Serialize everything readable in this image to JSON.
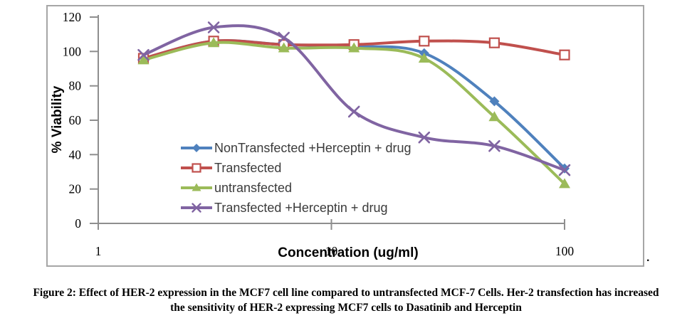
{
  "figure": {
    "caption_line1": "Figure 2:  Effect of HER-2 expression in the MCF7 cell line compared to untransfected MCF-7 Cells. Her-2 transfection has increased",
    "caption_line2": "the sensitivity of HER-2 expressing MCF7 cells to Dasatinib and Herceptin",
    "trailing_period": "."
  },
  "chart_data": {
    "type": "line",
    "smooth": true,
    "grid": false,
    "x_axis": {
      "label": "Concentration (ug/ml)",
      "scale": "log10",
      "ticks": [
        1,
        10,
        100
      ],
      "range": [
        1,
        100
      ]
    },
    "y_axis": {
      "label": "% Viability",
      "ticks": [
        120,
        100,
        80,
        60,
        40,
        20,
        0
      ],
      "range": [
        0,
        120
      ]
    },
    "x": [
      1.5625,
      3.125,
      6.25,
      12.5,
      25,
      50,
      100
    ],
    "series": [
      {
        "name": "NonTransfected +Herceptin + drug",
        "color": "#4F81BD",
        "marker": "diamond",
        "values": [
          96,
          106,
          104,
          103,
          99,
          71,
          32
        ]
      },
      {
        "name": "Transfected",
        "color": "#C0504D",
        "marker": "open-square",
        "values": [
          96,
          106,
          104,
          104,
          106,
          105,
          98
        ]
      },
      {
        "name": "untransfected",
        "color": "#9BBB59",
        "marker": "triangle",
        "values": [
          95,
          105,
          102,
          102,
          96,
          62,
          23
        ]
      },
      {
        "name": "Transfected +Herceptin + drug",
        "color": "#8064A2",
        "marker": "x",
        "values": [
          98,
          114,
          108,
          65,
          50,
          45,
          31
        ]
      }
    ],
    "legend_position": "inside-left",
    "axis_color": "#8e8e8e",
    "border_color": "#a6a6a6"
  }
}
